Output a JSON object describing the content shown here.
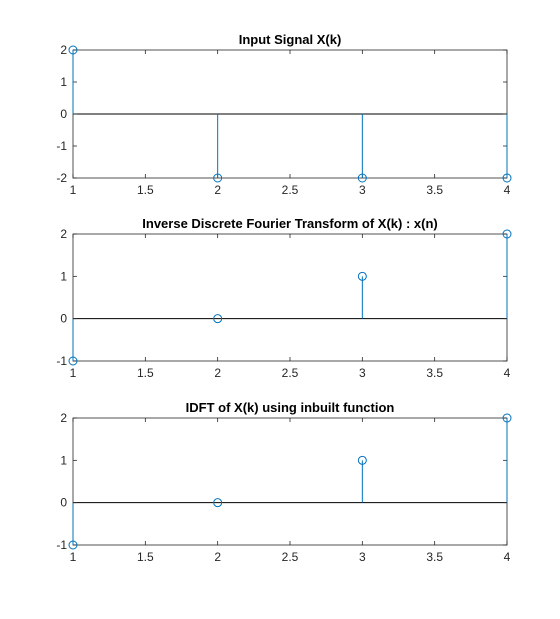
{
  "colors": {
    "stem": "#0072BD",
    "axis": "#262626",
    "baseline": "#000000",
    "background": "#ffffff"
  },
  "chart_data": [
    {
      "type": "stem",
      "title": "Input Signal X(k)",
      "x": [
        1,
        2,
        3,
        4
      ],
      "y": [
        2,
        -2,
        -2,
        -2
      ],
      "xlim": [
        1,
        4
      ],
      "ylim": [
        -2,
        2
      ],
      "xticks": [
        "1",
        "1.5",
        "2",
        "2.5",
        "3",
        "3.5",
        "4"
      ],
      "yticks": [
        "-2",
        "-1",
        "0",
        "1",
        "2"
      ],
      "grid": false
    },
    {
      "type": "stem",
      "title": "Inverse Discrete Fourier Transform of X(k) : x(n)",
      "x": [
        1,
        2,
        3,
        4
      ],
      "y": [
        -1,
        0,
        1,
        2
      ],
      "xlim": [
        1,
        4
      ],
      "ylim": [
        -1,
        2
      ],
      "xticks": [
        "1",
        "1.5",
        "2",
        "2.5",
        "3",
        "3.5",
        "4"
      ],
      "yticks": [
        "-1",
        "0",
        "1",
        "2"
      ],
      "grid": false
    },
    {
      "type": "stem",
      "title": "IDFT of X(k) using inbuilt function",
      "x": [
        1,
        2,
        3,
        4
      ],
      "y": [
        -1,
        0,
        1,
        2
      ],
      "xlim": [
        1,
        4
      ],
      "ylim": [
        -1,
        2
      ],
      "xticks": [
        "1",
        "1.5",
        "2",
        "2.5",
        "3",
        "3.5",
        "4"
      ],
      "yticks": [
        "-1",
        "0",
        "1",
        "2"
      ],
      "grid": false
    }
  ]
}
